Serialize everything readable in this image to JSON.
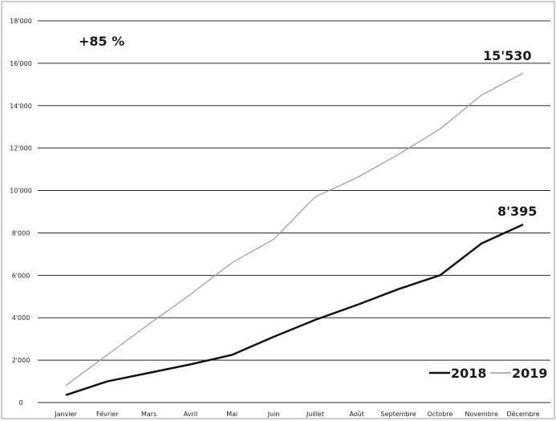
{
  "chart_data": {
    "type": "line",
    "categories": [
      "Janvier",
      "Février",
      "Mars",
      "Avril",
      "Mai",
      "Juin",
      "Juillet",
      "Août",
      "Septembre",
      "Octobre",
      "Novembre",
      "Décembre"
    ],
    "y_ticks": [
      "0",
      "2'000",
      "4'000",
      "6'000",
      "8'000",
      "10'000",
      "12'000",
      "14'000",
      "16'000",
      "18'000"
    ],
    "ylim": [
      0,
      18000
    ],
    "grid": true,
    "legend_placement": "bottom-right",
    "series": [
      {
        "name": "2018",
        "color": "#111111",
        "values": [
          350,
          1000,
          1400,
          1800,
          2250,
          3100,
          3900,
          4600,
          5350,
          6000,
          7500,
          8395
        ]
      },
      {
        "name": "2019",
        "color": "#9a9a9a",
        "values": [
          800,
          2250,
          3700,
          5100,
          6600,
          7700,
          9700,
          10600,
          11700,
          12900,
          14500,
          15530
        ]
      }
    ],
    "annotations": {
      "growth": "+85 %",
      "end_2019": "15'530",
      "end_2018": "8'395"
    },
    "legend": {
      "item_2018": "2018",
      "item_2019": "2019"
    }
  }
}
